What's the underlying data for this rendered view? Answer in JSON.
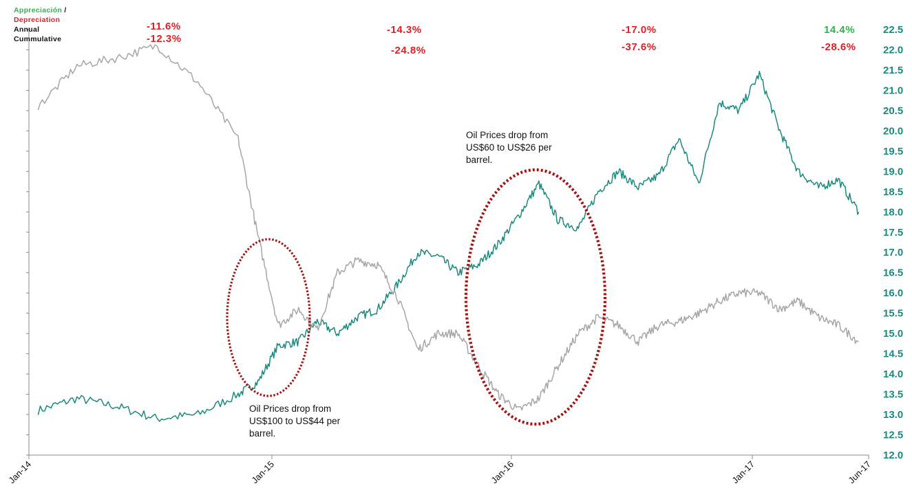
{
  "legend": {
    "appreciation": "Appreciación",
    "slash": "/",
    "depreciation": "Depreciation",
    "annual": "Annual",
    "cumulative": "Cummulative"
  },
  "colors": {
    "fx_line": "#1a8a7e",
    "oil_line": "#a6a6a6",
    "red": "#e31e24",
    "green": "#2db34a",
    "axis_label": "#1a8a7e",
    "ellipse": "#a31515"
  },
  "annual_changes": [
    {
      "value": "-11.6%",
      "color": "red"
    },
    {
      "value": "-14.3%",
      "color": "red"
    },
    {
      "value": "-17.0%",
      "color": "red"
    },
    {
      "value": "14.4%",
      "color": "green"
    }
  ],
  "cumulative_changes": [
    {
      "value": "-12.3%",
      "color": "red"
    },
    {
      "value": "-24.8%",
      "color": "red"
    },
    {
      "value": "-37.6%",
      "color": "red"
    },
    {
      "value": "-28.6%",
      "color": "red"
    }
  ],
  "annotations": [
    {
      "lines": [
        "Oil Prices drop from",
        "US$100 to US$44 per",
        "barrel."
      ]
    },
    {
      "lines": [
        "Oil Prices drop from",
        "US$60 to US$26 per",
        "barrel."
      ]
    }
  ],
  "chart_data": {
    "type": "line",
    "title": "",
    "xlabel": "",
    "ylabel": "",
    "x_ticks": [
      "Jan-14",
      "Jan-15",
      "Jan-16",
      "Jan-17",
      "Jun-17"
    ],
    "y_ticks": [
      "12.0",
      "12.5",
      "13.0",
      "13.5",
      "14.0",
      "14.5",
      "15.0",
      "15.5",
      "16.0",
      "16.5",
      "17.0",
      "17.5",
      "18.0",
      "18.5",
      "19.0",
      "19.5",
      "20.0",
      "20.5",
      "21.0",
      "21.5",
      "22.0",
      "22.5"
    ],
    "ylim": [
      12.0,
      22.5
    ],
    "y_axis_side": "right",
    "series": [
      {
        "color": "fx_line",
        "x": [
          "2014-01",
          "2014-03",
          "2014-05",
          "2014-07",
          "2014-09",
          "2014-11",
          "2014-12",
          "2015-01",
          "2015-02",
          "2015-03",
          "2015-04",
          "2015-05",
          "2015-06",
          "2015-07",
          "2015-08",
          "2015-09",
          "2015-10",
          "2015-11",
          "2015-12",
          "2016-01",
          "2016-02",
          "2016-03",
          "2016-04",
          "2016-05",
          "2016-06",
          "2016-07",
          "2016-08",
          "2016-09",
          "2016-10",
          "2016-11",
          "2016-12",
          "2017-01",
          "2017-02",
          "2017-03",
          "2017-04",
          "2017-05",
          "2017-06"
        ],
        "values": [
          13.1,
          13.4,
          13.2,
          12.9,
          13.0,
          13.5,
          13.8,
          14.7,
          14.8,
          15.3,
          15.0,
          15.4,
          15.6,
          16.2,
          17.0,
          16.9,
          16.5,
          16.7,
          17.2,
          17.9,
          18.7,
          17.8,
          17.6,
          18.5,
          19.0,
          18.6,
          18.9,
          19.8,
          18.7,
          20.7,
          20.5,
          21.4,
          20.0,
          19.0,
          18.6,
          18.8,
          18.0
        ]
      },
      {
        "color": "oil_line",
        "x": [
          "2014-01",
          "2014-03",
          "2014-05",
          "2014-07",
          "2014-09",
          "2014-11",
          "2014-12",
          "2015-01",
          "2015-02",
          "2015-03",
          "2015-04",
          "2015-05",
          "2015-06",
          "2015-07",
          "2015-08",
          "2015-09",
          "2015-10",
          "2015-11",
          "2015-12",
          "2016-01",
          "2016-02",
          "2016-03",
          "2016-04",
          "2016-05",
          "2016-06",
          "2016-07",
          "2016-08",
          "2016-09",
          "2016-10",
          "2016-11",
          "2016-12",
          "2017-01",
          "2017-02",
          "2017-03",
          "2017-04",
          "2017-05",
          "2017-06"
        ],
        "values": [
          20.6,
          21.6,
          21.8,
          22.1,
          21.2,
          19.8,
          17.4,
          15.2,
          15.6,
          15.1,
          16.5,
          16.8,
          16.7,
          15.9,
          14.6,
          15.0,
          15.0,
          14.2,
          13.5,
          13.1,
          13.4,
          14.2,
          15.0,
          15.4,
          15.2,
          14.8,
          15.2,
          15.3,
          15.5,
          15.8,
          16.0,
          16.0,
          15.6,
          15.8,
          15.4,
          15.2,
          14.8
        ]
      }
    ]
  }
}
